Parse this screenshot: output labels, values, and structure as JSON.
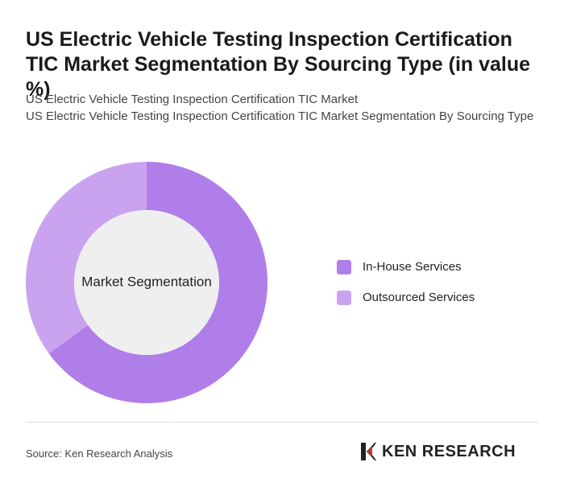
{
  "chart_data": {
    "type": "pie",
    "title": "US Electric Vehicle Testing Inspection Certification TIC Market Segmentation By Sourcing Type (in value %)",
    "subtitles": [
      "US Electric Vehicle Testing Inspection Certification TIC Market",
      "US Electric Vehicle Testing Inspection Certification TIC Market Segmentation By Sourcing Type"
    ],
    "center_label": "Market Segmentation",
    "categories": [
      "In-House Services",
      "Outsourced Services"
    ],
    "values": [
      65,
      35
    ],
    "colors": [
      "#b07ee8",
      "#c9a3f0"
    ],
    "source": "Source: Ken Research Analysis",
    "logo": "KEN RESEARCH"
  }
}
